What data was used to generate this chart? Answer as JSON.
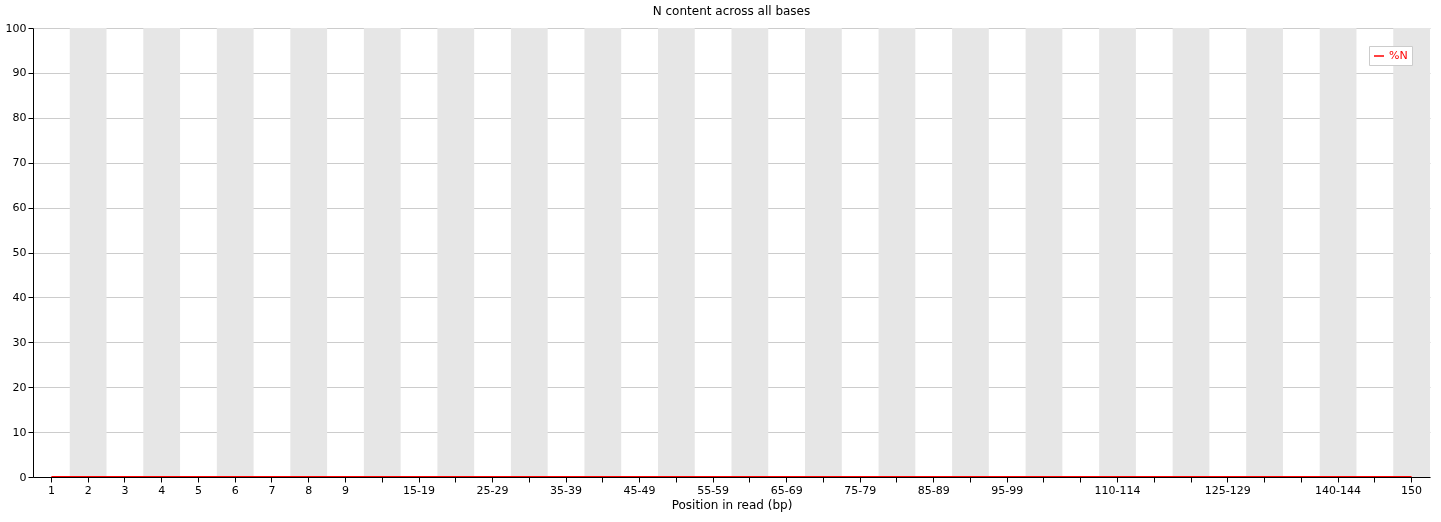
{
  "chart_data": {
    "type": "line",
    "title": "N content across all bases",
    "xlabel": "Position in read (bp)",
    "categories": [
      "1",
      "2",
      "3",
      "4",
      "5",
      "6",
      "7",
      "8",
      "9",
      null,
      "15-19",
      null,
      "25-29",
      null,
      "35-39",
      null,
      "45-49",
      null,
      "55-59",
      null,
      "65-69",
      null,
      "75-79",
      null,
      "85-89",
      null,
      "95-99",
      null,
      null,
      "110-114",
      null,
      null,
      "125-129",
      null,
      null,
      "140-144",
      null,
      "150"
    ],
    "series": [
      {
        "name": "%N",
        "color": "#ff0000",
        "values": [
          0,
          0,
          0,
          0,
          0,
          0,
          0,
          0,
          0,
          0,
          0,
          0,
          0,
          0,
          0,
          0,
          0,
          0,
          0,
          0,
          0,
          0,
          0,
          0,
          0,
          0,
          0,
          0,
          0,
          0,
          0,
          0,
          0,
          0,
          0,
          0,
          0,
          0
        ]
      }
    ],
    "ylim": [
      0,
      100
    ],
    "yticks": [
      0,
      10,
      20,
      30,
      40,
      50,
      60,
      70,
      80,
      90,
      100
    ],
    "grid": "y",
    "legend": "top right",
    "marker": "none",
    "line_style": "solid"
  }
}
